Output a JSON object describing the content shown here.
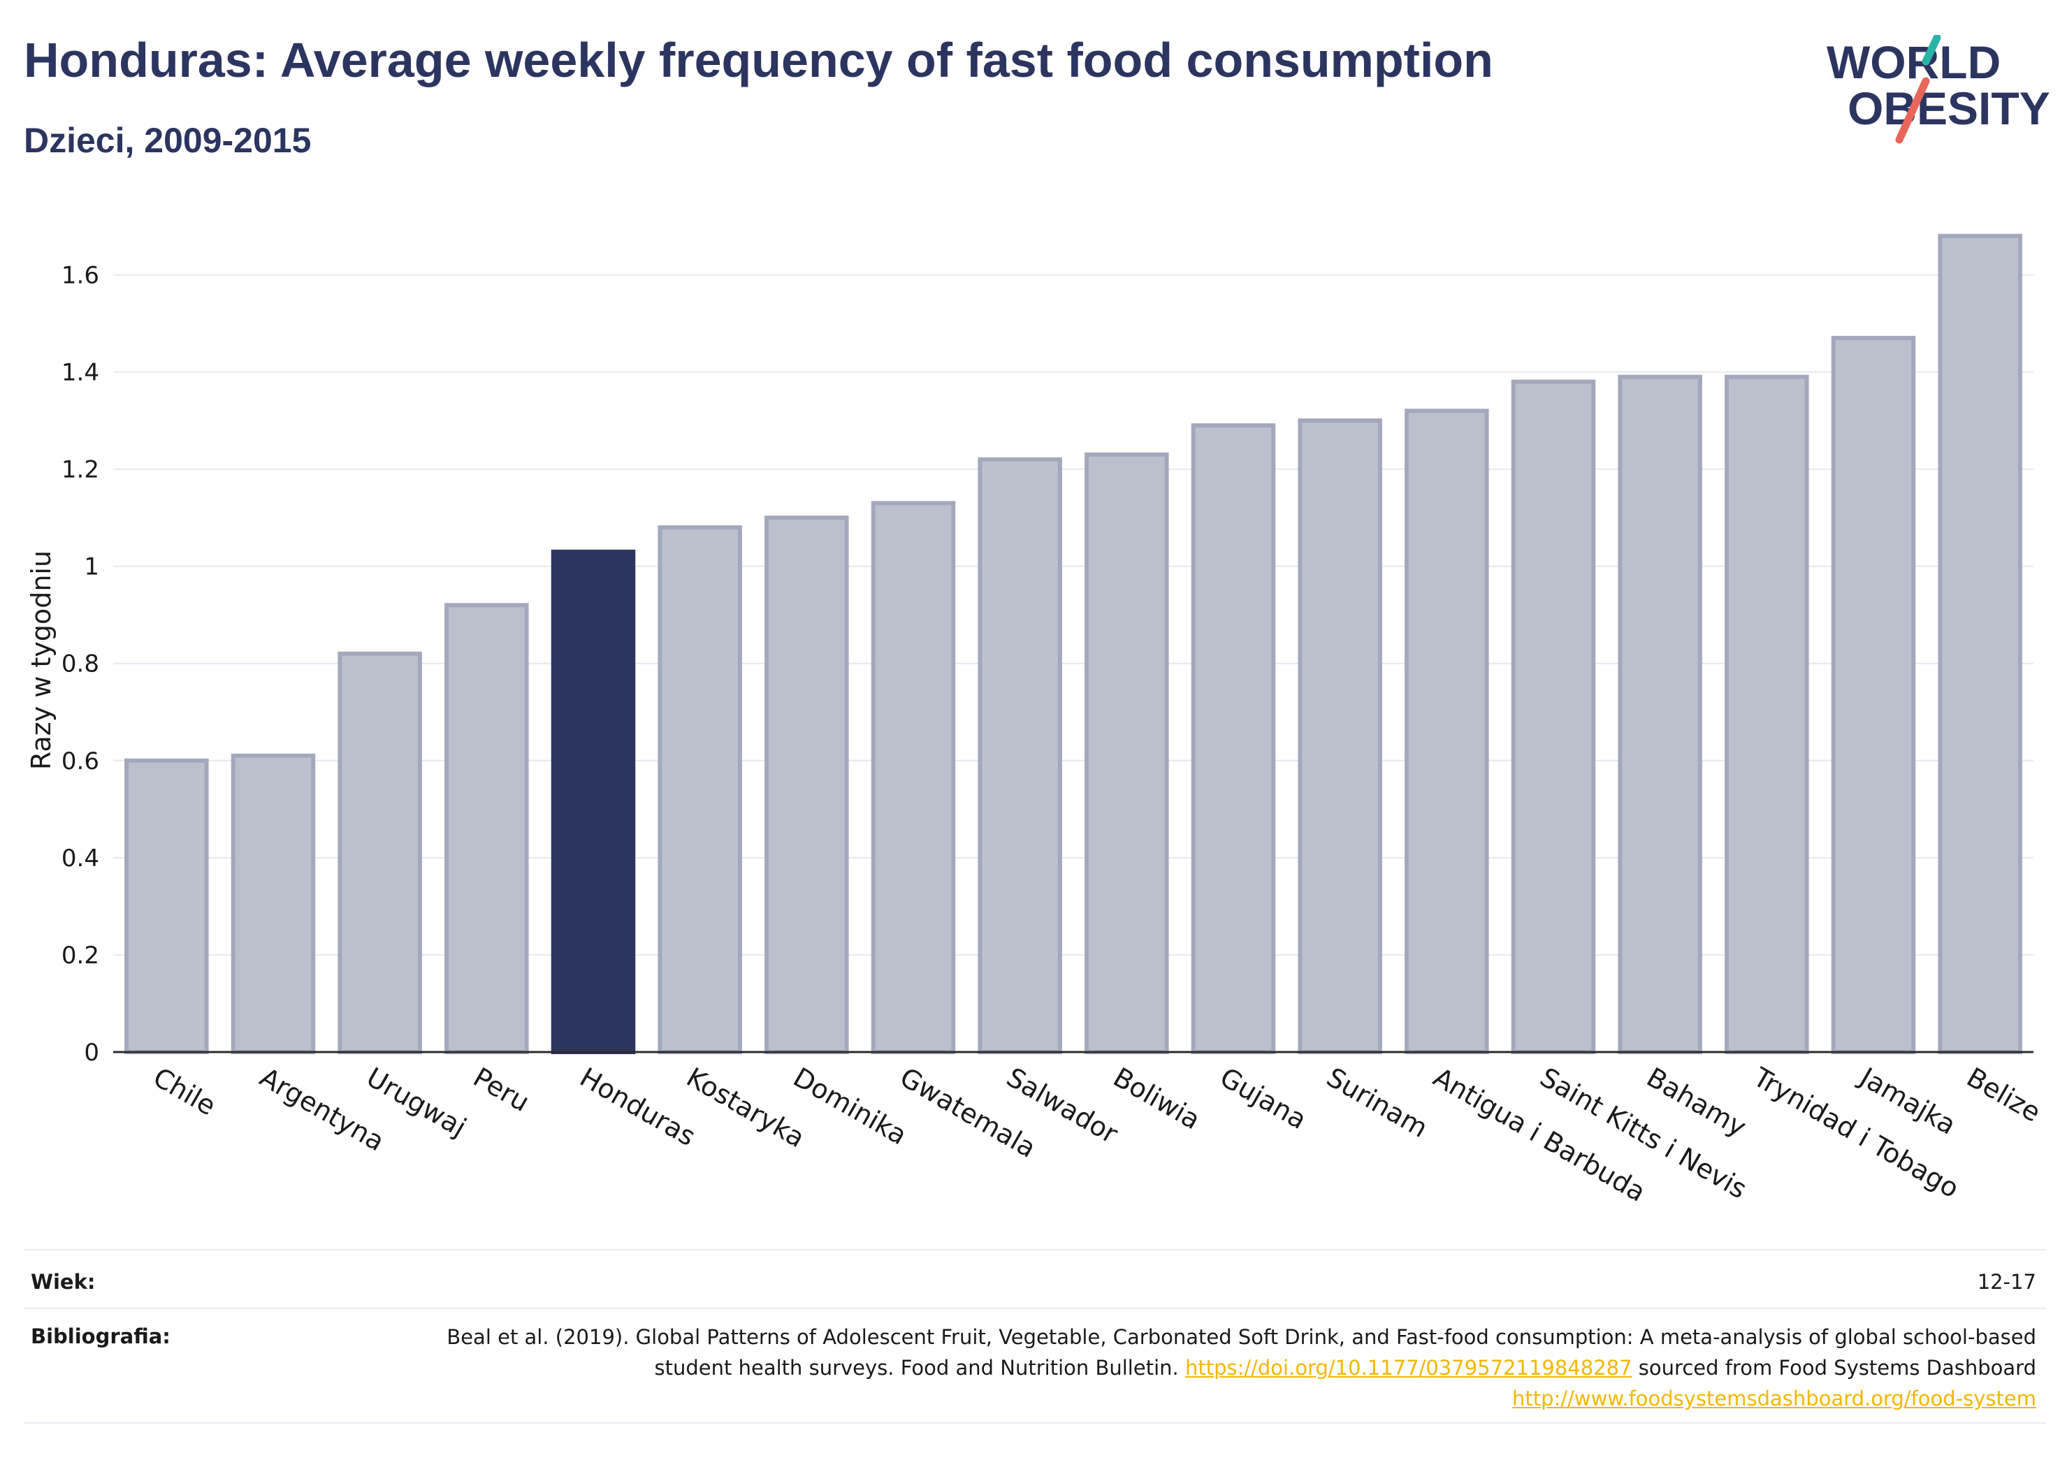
{
  "header": {
    "title": "Honduras: Average weekly frequency of fast food consumption",
    "subtitle": "Dzieci, 2009-2015"
  },
  "logo": {
    "line1": "WORLD",
    "line2": "OBESITY",
    "accent_teal": "#2ab3a6",
    "accent_coral": "#e8665a"
  },
  "chart_data": {
    "type": "bar",
    "ylabel": "Razy w tygodniu",
    "ylim": [
      0,
      1.72
    ],
    "yticks": [
      0,
      0.2,
      0.4,
      0.6,
      0.8,
      1,
      1.2,
      1.4,
      1.6
    ],
    "ytick_labels": [
      "0",
      "0.2",
      "0.4",
      "0.6",
      "0.8",
      "1",
      "1.2",
      "1.4",
      "1.6"
    ],
    "grid": true,
    "highlight": "Honduras",
    "colors": {
      "bar": "#bcc0cd",
      "bar_border": "#a3a8bd",
      "highlight": "#2c3560"
    },
    "categories": [
      "Chile",
      "Argentyna",
      "Urugwaj",
      "Peru",
      "Honduras",
      "Kostaryka",
      "Dominika",
      "Gwatemala",
      "Salwador",
      "Boliwia",
      "Gujana",
      "Surinam",
      "Antigua i Barbuda",
      "Saint Kitts i Nevis",
      "Bahamy",
      "Trynidad i Tobago",
      "Jamajka",
      "Belize"
    ],
    "values": [
      0.6,
      0.61,
      0.82,
      0.92,
      1.03,
      1.08,
      1.1,
      1.13,
      1.22,
      1.23,
      1.29,
      1.3,
      1.32,
      1.38,
      1.39,
      1.39,
      1.47,
      1.68
    ]
  },
  "footer": {
    "age_label": "Wiek:",
    "age_value": "12-17",
    "bib_label": "Bibliografia:",
    "bib_text_1": "Beal et al. (2019). Global Patterns of Adolescent Fruit, Vegetable, Carbonated Soft Drink, and Fast-food consumption: A meta-analysis of global school-based student health surveys. Food and Nutrition Bulletin.",
    "bib_link_1": "https://doi.org/10.1177/0379572119848287",
    "bib_text_2": "sourced from Food Systems Dashboard",
    "bib_link_2": "http://www.foodsystemsdashboard.org/food-system"
  }
}
